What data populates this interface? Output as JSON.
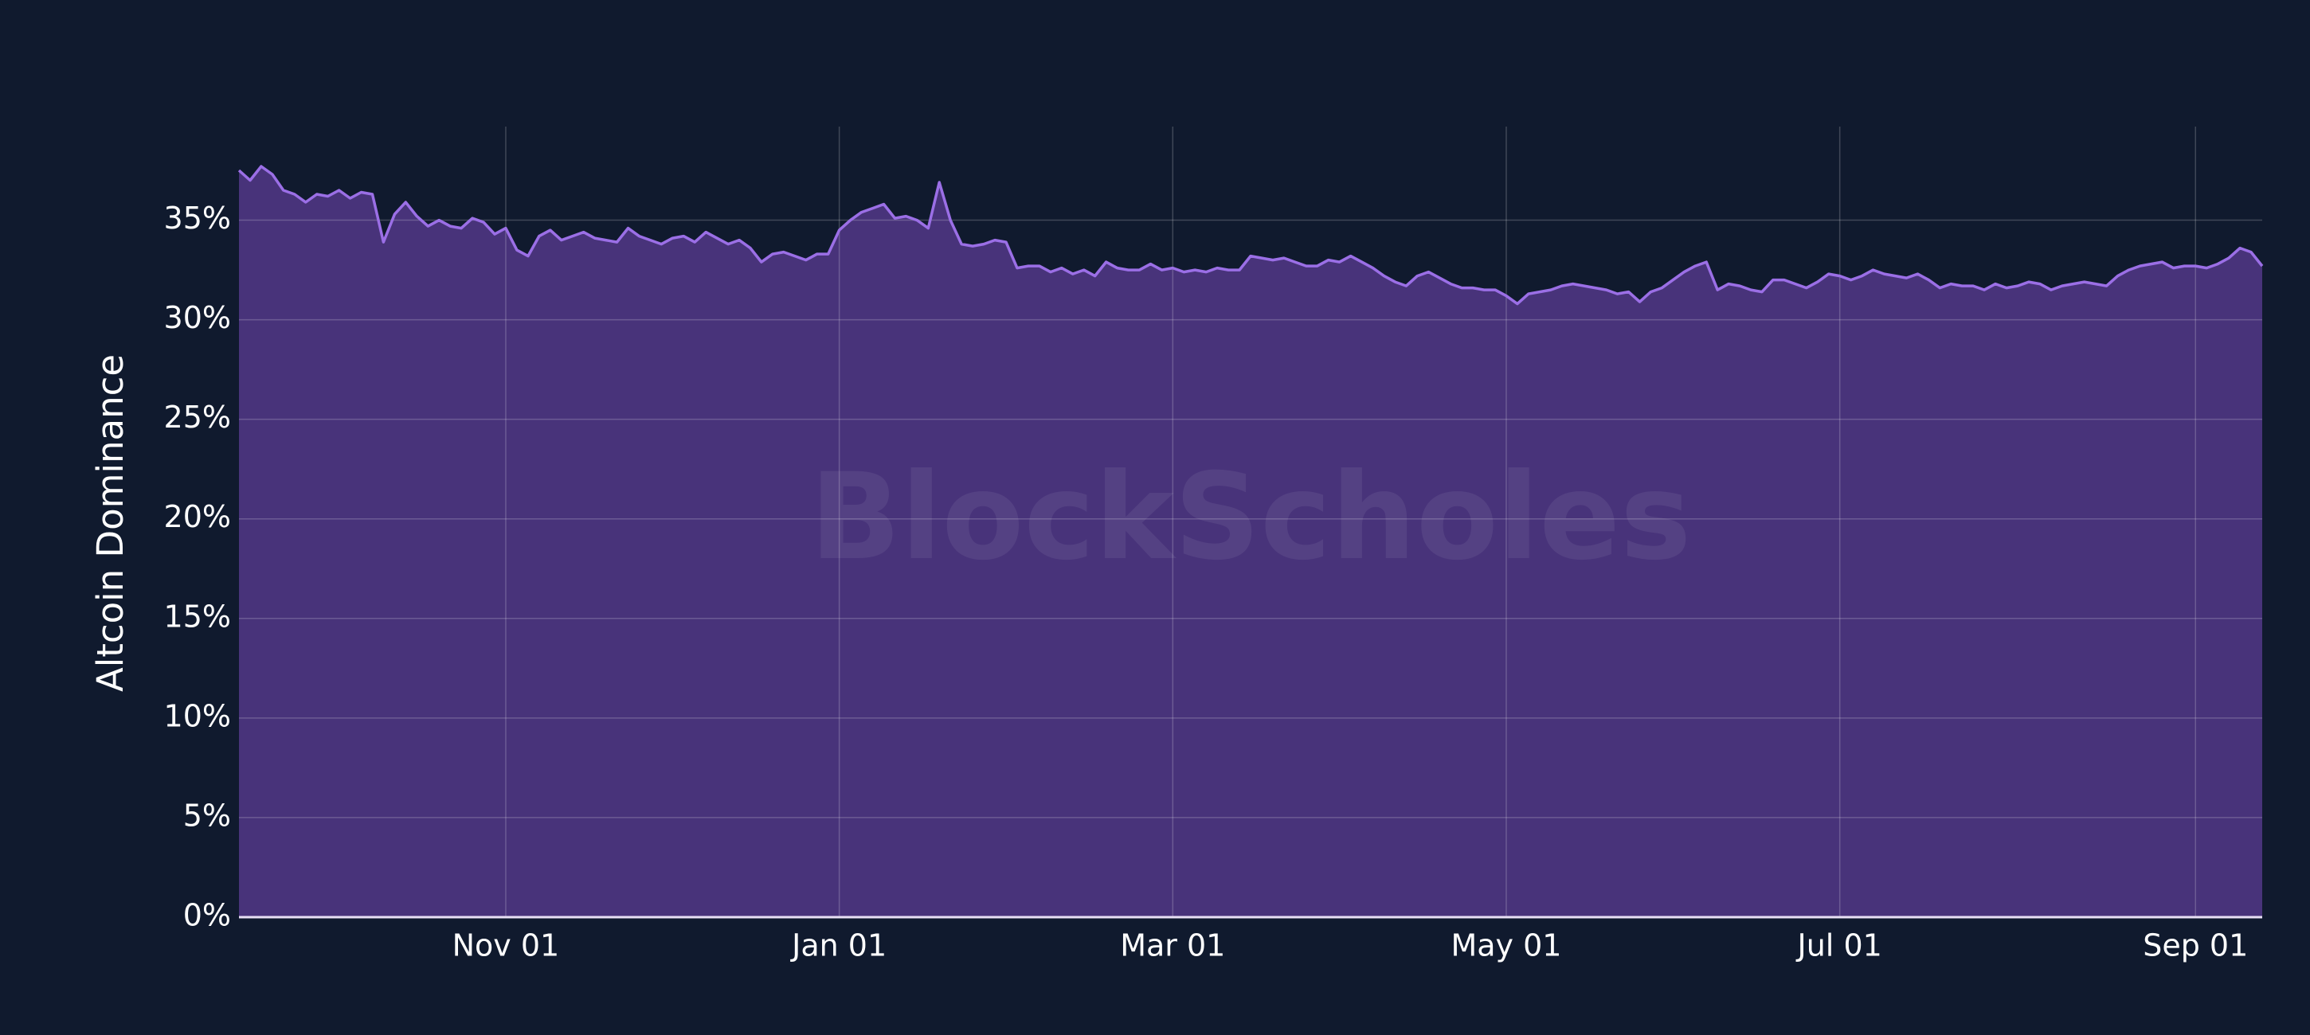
{
  "chart_data": {
    "type": "area",
    "y_label": "Altcoin Dominance",
    "watermark": "BlockScholes",
    "categories": [
      null,
      null,
      null,
      null,
      null,
      null,
      null,
      null,
      null,
      null,
      null,
      null,
      null,
      null,
      null,
      null,
      null,
      null,
      null,
      null,
      null,
      null,
      null,
      null,
      "Nov 01",
      null,
      null,
      null,
      null,
      null,
      null,
      null,
      null,
      null,
      null,
      null,
      null,
      null,
      null,
      null,
      null,
      null,
      null,
      null,
      null,
      null,
      null,
      null,
      null,
      null,
      null,
      null,
      null,
      null,
      "Jan 01",
      null,
      null,
      null,
      null,
      null,
      null,
      null,
      null,
      null,
      null,
      null,
      null,
      null,
      null,
      null,
      null,
      null,
      null,
      null,
      null,
      null,
      null,
      null,
      null,
      null,
      null,
      null,
      null,
      null,
      "Mar 01",
      null,
      null,
      null,
      null,
      null,
      null,
      null,
      null,
      null,
      null,
      null,
      null,
      null,
      null,
      null,
      null,
      null,
      null,
      null,
      null,
      null,
      null,
      null,
      null,
      null,
      null,
      null,
      null,
      null,
      "May 01",
      null,
      null,
      null,
      null,
      null,
      null,
      null,
      null,
      null,
      null,
      null,
      null,
      null,
      null,
      null,
      null,
      null,
      null,
      null,
      null,
      null,
      null,
      null,
      null,
      null,
      null,
      null,
      null,
      null,
      "Jul 01",
      null,
      null,
      null,
      null,
      null,
      null,
      null,
      null,
      null,
      null,
      null,
      null,
      null,
      null,
      null,
      null,
      null,
      null,
      null,
      null,
      null,
      null,
      null,
      null,
      null,
      null,
      null,
      null,
      null,
      null,
      null,
      "Sep 01",
      null,
      null,
      null,
      null,
      null,
      null
    ],
    "values": [
      37.5,
      37.0,
      37.7,
      37.3,
      36.5,
      36.3,
      35.9,
      36.3,
      36.2,
      36.5,
      36.1,
      36.4,
      36.3,
      33.9,
      35.3,
      35.9,
      35.2,
      34.7,
      35.0,
      34.7,
      34.6,
      35.1,
      34.9,
      34.3,
      34.6,
      33.5,
      33.2,
      34.2,
      34.5,
      34.0,
      34.2,
      34.4,
      34.1,
      34.0,
      33.9,
      34.6,
      34.2,
      34.0,
      33.8,
      34.1,
      34.2,
      33.9,
      34.4,
      34.1,
      33.8,
      34.0,
      33.6,
      32.9,
      33.3,
      33.4,
      33.2,
      33.0,
      33.3,
      33.3,
      34.5,
      35.0,
      35.4,
      35.6,
      35.8,
      35.1,
      35.2,
      35.0,
      34.6,
      36.9,
      35.0,
      33.8,
      33.7,
      33.8,
      34.0,
      33.9,
      32.6,
      32.7,
      32.7,
      32.4,
      32.6,
      32.3,
      32.5,
      32.2,
      32.9,
      32.6,
      32.5,
      32.5,
      32.8,
      32.5,
      32.6,
      32.4,
      32.5,
      32.4,
      32.6,
      32.5,
      32.5,
      33.2,
      33.1,
      33.0,
      33.1,
      32.9,
      32.7,
      32.7,
      33.0,
      32.9,
      33.2,
      32.9,
      32.6,
      32.2,
      31.9,
      31.7,
      32.2,
      32.4,
      32.1,
      31.8,
      31.6,
      31.6,
      31.5,
      31.5,
      31.2,
      30.8,
      31.3,
      31.4,
      31.5,
      31.7,
      31.8,
      31.7,
      31.6,
      31.5,
      31.3,
      31.4,
      30.9,
      31.4,
      31.6,
      32.0,
      32.4,
      32.7,
      32.9,
      31.5,
      31.8,
      31.7,
      31.5,
      31.4,
      32.0,
      32.0,
      31.8,
      31.6,
      31.9,
      32.3,
      32.2,
      32.0,
      32.2,
      32.5,
      32.3,
      32.2,
      32.1,
      32.3,
      32.0,
      31.6,
      31.8,
      31.7,
      31.7,
      31.5,
      31.8,
      31.6,
      31.7,
      31.9,
      31.8,
      31.5,
      31.7,
      31.8,
      31.9,
      31.8,
      31.7,
      32.2,
      32.5,
      32.7,
      32.8,
      32.9,
      32.6,
      32.7,
      32.7,
      32.6,
      32.8,
      33.1,
      33.6,
      33.4,
      32.7
    ],
    "color": "#9b6fe6",
    "fill": "#48337a",
    "ylim": [
      0,
      39.7
    ],
    "yticks": [
      {
        "value": 0,
        "label": "0%"
      },
      {
        "value": 5,
        "label": "5%"
      },
      {
        "value": 10,
        "label": "10%"
      },
      {
        "value": 15,
        "label": "15%"
      },
      {
        "value": 20,
        "label": "20%"
      },
      {
        "value": 25,
        "label": "25%"
      },
      {
        "value": 30,
        "label": "30%"
      },
      {
        "value": 35,
        "label": "35%"
      }
    ],
    "grid": true
  }
}
